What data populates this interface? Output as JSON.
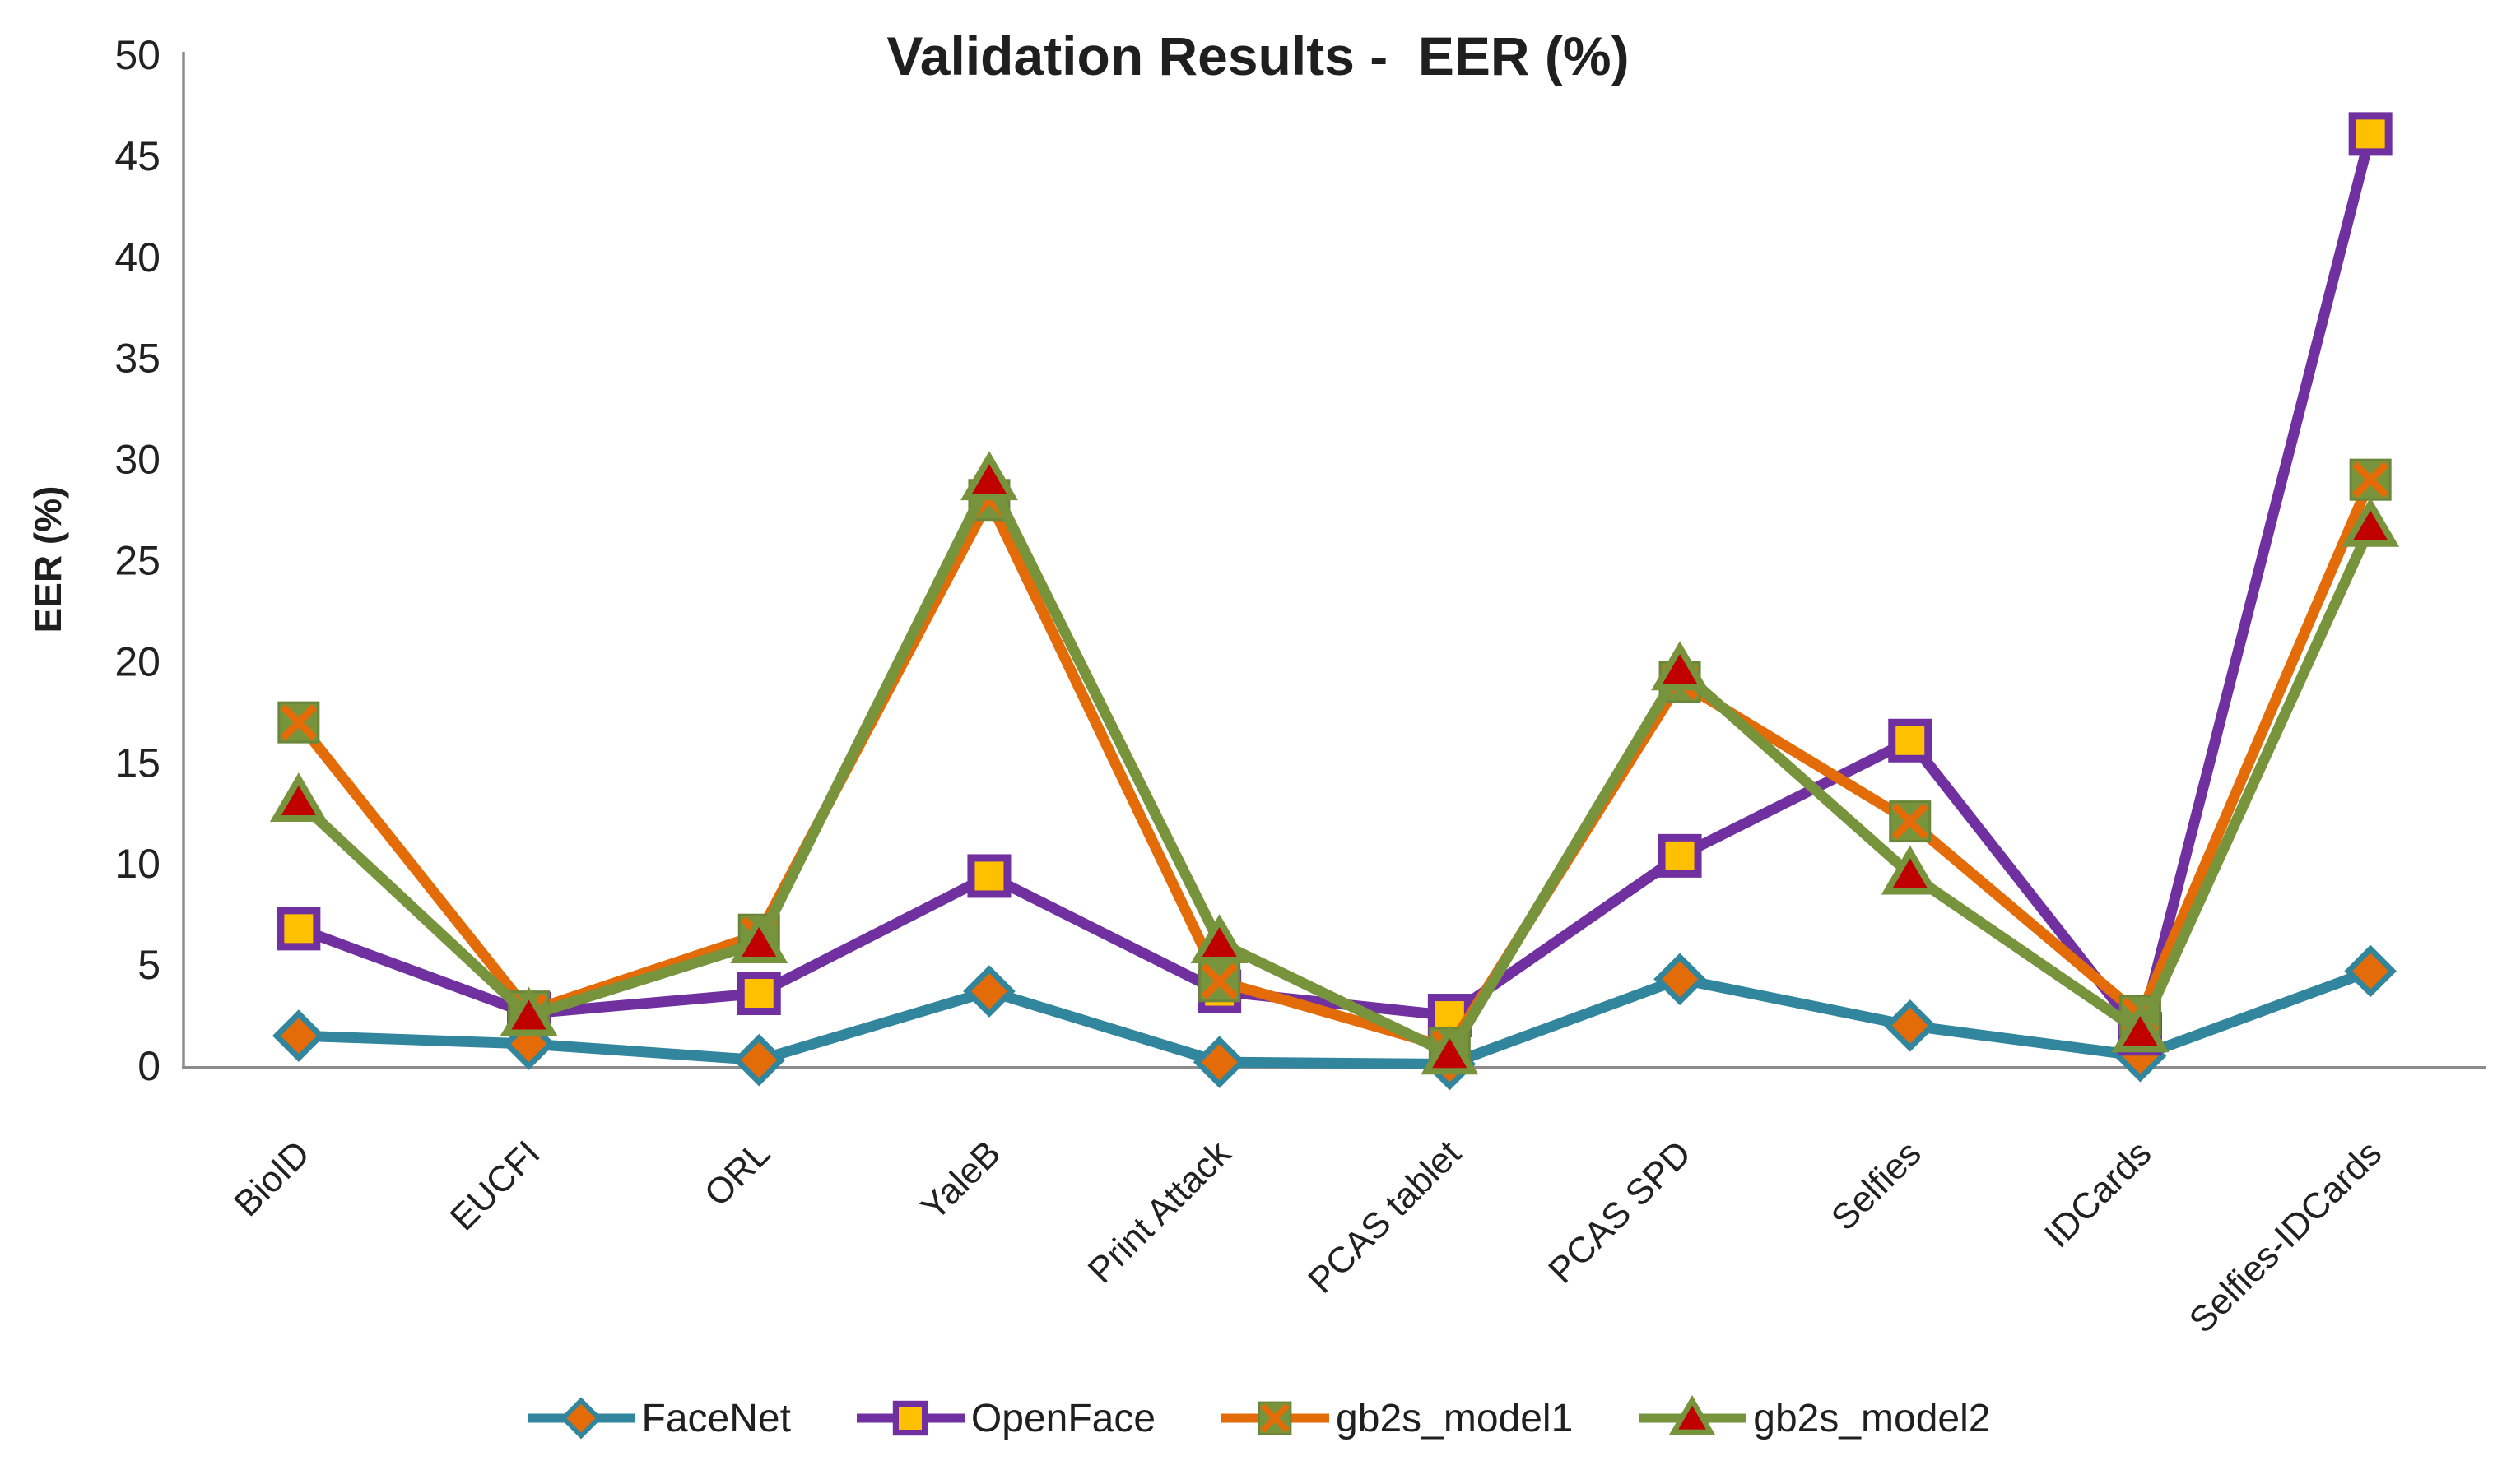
{
  "chart_data": {
    "type": "line",
    "title": "Validation Results -  EER (%)",
    "ylabel": "EER (%)",
    "xlabel": "",
    "ylim": [
      0,
      50
    ],
    "yticks": [
      0,
      5,
      10,
      15,
      20,
      25,
      30,
      35,
      40,
      45,
      50
    ],
    "grid": false,
    "legend_position": "bottom",
    "categories": [
      "BioID",
      "EUCFI",
      "ORL",
      "YaleB",
      "Print Attack",
      "PCAS tablet",
      "PCAS SPD",
      "Selfies",
      "IDCards",
      "Selfies-IDCards"
    ],
    "series": [
      {
        "name": "FaceNet",
        "color": "#31859C",
        "marker": "diamond",
        "marker_fill": "#E36C09",
        "values": [
          1.5,
          1.1,
          0.3,
          3.7,
          0.2,
          0.1,
          4.3,
          2.0,
          0.5,
          4.7
        ]
      },
      {
        "name": "OpenFace",
        "color": "#7030A0",
        "marker": "square",
        "marker_fill": "#FFC000",
        "values": [
          6.8,
          2.6,
          3.6,
          9.4,
          3.7,
          2.5,
          10.4,
          16.1,
          1.6,
          46.1
        ]
      },
      {
        "name": "gb2s_model1",
        "color": "#E36C09",
        "marker": "square-x",
        "marker_fill": "#77933C",
        "values": [
          17.0,
          2.7,
          6.5,
          28.0,
          4.2,
          0.9,
          19.0,
          12.1,
          2.5,
          29.0
        ]
      },
      {
        "name": "gb2s_model2",
        "color": "#77933C",
        "marker": "triangle",
        "marker_fill": "#C00000",
        "values": [
          13.1,
          2.5,
          6.1,
          29.0,
          6.1,
          0.6,
          19.6,
          9.5,
          1.7,
          26.7
        ]
      }
    ]
  },
  "colors": {
    "axis": "#8C8C8C",
    "text": "#212121"
  }
}
